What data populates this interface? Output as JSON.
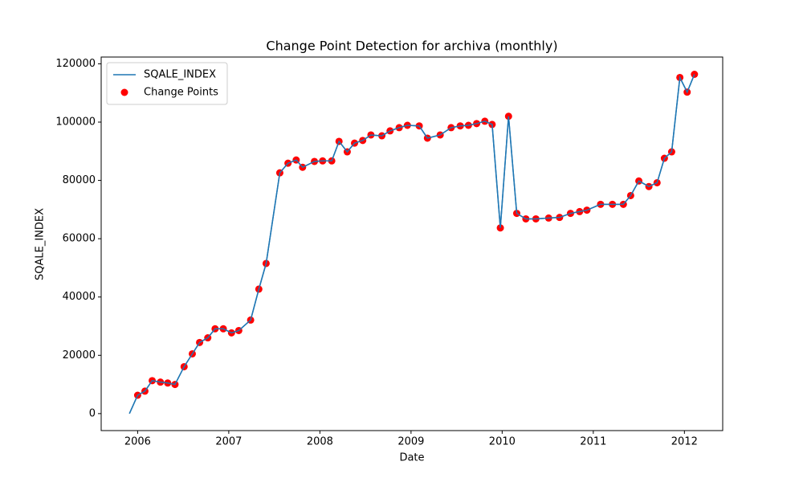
{
  "chart_data": {
    "type": "line",
    "title": "Change Point Detection for archiva (monthly)",
    "x_label": "Date",
    "y_label": "SQALE_INDEX",
    "x": [
      2005.91,
      2006.0,
      2006.08,
      2006.16,
      2006.25,
      2006.33,
      2006.41,
      2006.51,
      2006.6,
      2006.68,
      2006.77,
      2006.85,
      2006.94,
      2007.03,
      2007.11,
      2007.24,
      2007.33,
      2007.41,
      2007.56,
      2007.65,
      2007.74,
      2007.81,
      2007.94,
      2008.03,
      2008.13,
      2008.21,
      2008.3,
      2008.38,
      2008.47,
      2008.56,
      2008.68,
      2008.77,
      2008.87,
      2008.96,
      2009.09,
      2009.18,
      2009.32,
      2009.44,
      2009.54,
      2009.63,
      2009.72,
      2009.81,
      2009.89,
      2009.98,
      2010.07,
      2010.16,
      2010.26,
      2010.37,
      2010.51,
      2010.63,
      2010.75,
      2010.85,
      2010.93,
      2011.08,
      2011.21,
      2011.33,
      2011.41,
      2011.5,
      2011.61,
      2011.7,
      2011.78,
      2011.86,
      2011.95,
      2012.03,
      2012.11
    ],
    "series": [
      {
        "name": "SQALE_INDEX",
        "type": "line",
        "color": "#1f77b4",
        "values": [
          0,
          6300,
          7700,
          11300,
          10800,
          10500,
          10000,
          16100,
          20500,
          24400,
          26000,
          29100,
          29100,
          27700,
          28500,
          32100,
          42700,
          51500,
          82600,
          85900,
          87000,
          84500,
          86500,
          86700,
          86700,
          93400,
          89800,
          92800,
          93700,
          95600,
          95300,
          97000,
          98100,
          98900,
          98700,
          94500,
          95600,
          98100,
          98700,
          98900,
          99500,
          100300,
          99200,
          63700,
          102000,
          68700,
          66800,
          66800,
          67100,
          67300,
          68700,
          69300,
          69800,
          71800,
          71800,
          71800,
          74800,
          79800,
          77900,
          79200,
          87600,
          89800,
          115300,
          110300,
          116400
        ]
      },
      {
        "name": "Change Points",
        "type": "scatter",
        "color": "#ff0000",
        "values": [
          null,
          6300,
          7700,
          11300,
          10800,
          10500,
          10000,
          16100,
          20500,
          24400,
          26000,
          29100,
          29100,
          27700,
          28500,
          32100,
          42700,
          51500,
          82600,
          85900,
          87000,
          84500,
          86500,
          86700,
          86700,
          93400,
          89800,
          92800,
          93700,
          95600,
          95300,
          97000,
          98100,
          98900,
          98700,
          94500,
          95600,
          98100,
          98700,
          98900,
          99500,
          100300,
          99200,
          63700,
          102000,
          68700,
          66800,
          66800,
          67100,
          67300,
          68700,
          69300,
          69800,
          71800,
          71800,
          71800,
          74800,
          79800,
          77900,
          79200,
          87600,
          89800,
          115300,
          110300,
          116400
        ]
      }
    ],
    "xlim": [
      2005.6,
      2012.42
    ],
    "xticks": [
      2006,
      2007,
      2008,
      2009,
      2010,
      2011,
      2012
    ],
    "ylim": [
      -5825,
      122325
    ],
    "yticks": [
      0,
      20000,
      40000,
      60000,
      80000,
      100000,
      120000
    ],
    "legend": "upper left",
    "grid": false
  }
}
